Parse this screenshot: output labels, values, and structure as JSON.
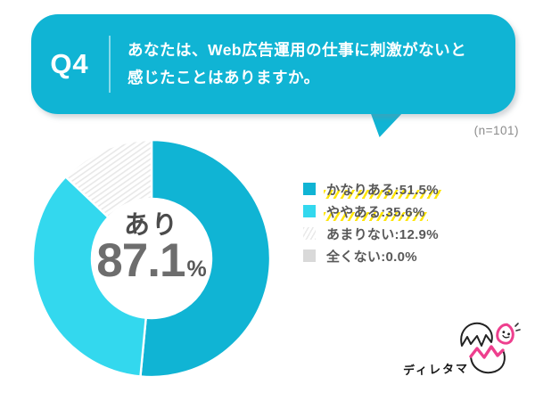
{
  "header": {
    "q_label": "Q4",
    "question_line1": "あなたは、Web広告運用の仕事に刺激がないと",
    "question_line2": "感じたことはありますか。",
    "sample_size": "(n=101)"
  },
  "chart_data": {
    "type": "pie",
    "subtype": "donut",
    "start_angle": "top",
    "direction": "clockwise",
    "categories": [
      "かなりある",
      "ややある",
      "あまりない",
      "全くない"
    ],
    "values": [
      51.5,
      35.6,
      12.9,
      0.0
    ],
    "unit": "%",
    "colors": [
      "#10b4d4",
      "#33d8ee",
      "hatch-light-gray",
      "#d9d9d9"
    ],
    "center_label": "あり",
    "center_value": "87.1",
    "center_unit": "%",
    "legend_position": "right",
    "legend": [
      {
        "label": "かなりある:51.5%",
        "swatch": "#10b4d4",
        "highlighted": true
      },
      {
        "label": "ややある:35.6%",
        "swatch": "#33d8ee",
        "highlighted": true
      },
      {
        "label": "あまりない:12.9%",
        "swatch": "hatch-light-gray",
        "highlighted": false
      },
      {
        "label": "全くない:0.0%",
        "swatch": "#d9d9d9",
        "highlighted": false
      }
    ]
  },
  "footer": {
    "brand": "ディレタマ"
  },
  "palette": {
    "primary": "#10b4d4",
    "secondary": "#33d8ee",
    "highlight": "#ffe60a",
    "mascot_pink": "#ee3f8e",
    "text_gray": "#595959"
  }
}
